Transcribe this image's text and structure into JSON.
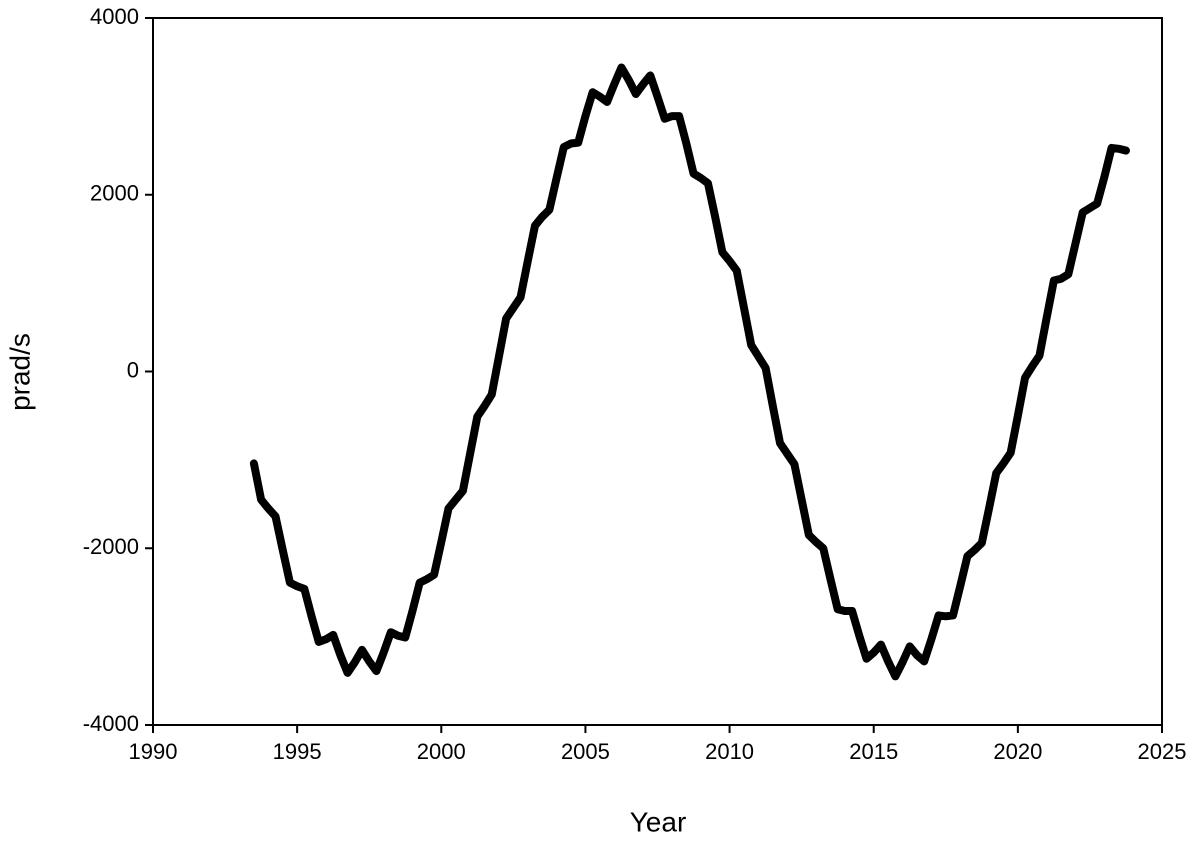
{
  "chart_data": {
    "type": "line",
    "x_label": "Year",
    "y_label": "prad/s",
    "xlim": [
      1990,
      2025
    ],
    "xticks": [
      1990,
      1995,
      2000,
      2005,
      2010,
      2015,
      2020,
      2025
    ],
    "ylim": [
      -4000,
      4000
    ],
    "yticks": [
      -4000,
      -2000,
      0,
      2000,
      4000
    ],
    "series": [
      {
        "color": "#000000",
        "x": [
          1993.5,
          1993.75,
          1994,
          1994.25,
          1994.5,
          1994.75,
          1995,
          1995.25,
          1995.5,
          1995.75,
          1996,
          1996.25,
          1996.5,
          1996.75,
          1997,
          1997.25,
          1997.5,
          1997.75,
          1998,
          1998.25,
          1998.5,
          1998.75,
          1999,
          1999.25,
          1999.5,
          1999.75,
          2000,
          2000.25,
          2000.5,
          2000.75,
          2001,
          2001.25,
          2001.5,
          2001.75,
          2002,
          2002.25,
          2002.5,
          2002.75,
          2003,
          2003.25,
          2003.5,
          2003.75,
          2004,
          2004.25,
          2004.5,
          2004.75,
          2005,
          2005.25,
          2005.5,
          2005.75,
          2006,
          2006.25,
          2006.5,
          2006.75,
          2007,
          2007.25,
          2007.5,
          2007.75,
          2008,
          2008.25,
          2008.5,
          2008.75,
          2009,
          2009.25,
          2009.5,
          2009.75,
          2010,
          2010.25,
          2010.5,
          2010.75,
          2011,
          2011.25,
          2011.5,
          2011.75,
          2012,
          2012.25,
          2012.5,
          2012.75,
          2013,
          2013.25,
          2013.5,
          2013.75,
          2014,
          2014.25,
          2014.5,
          2014.75,
          2015,
          2015.25,
          2015.5,
          2015.75,
          2016,
          2016.25,
          2016.5,
          2016.75,
          2017,
          2017.25,
          2017.5,
          2017.75,
          2018,
          2018.25,
          2018.5,
          2018.75,
          2019,
          2019.25,
          2019.5,
          2019.75,
          2020,
          2020.25,
          2020.5,
          2020.75,
          2021,
          2021.25,
          2021.5,
          2021.75,
          2022,
          2022.25,
          2022.5,
          2022.75,
          2023,
          2023.25,
          2023.5,
          2023.75
        ],
        "values": [
          -1040,
          -1450,
          -1550,
          -1640,
          -2020,
          -2390,
          -2430,
          -2460,
          -2770,
          -3060,
          -3030,
          -2980,
          -3210,
          -3410,
          -3290,
          -3150,
          -3280,
          -3390,
          -3180,
          -2950,
          -2990,
          -3010,
          -2710,
          -2390,
          -2350,
          -2300,
          -1930,
          -1550,
          -1450,
          -1350,
          -930,
          -510,
          -390,
          -260,
          170,
          600,
          720,
          840,
          1250,
          1650,
          1750,
          1830,
          2190,
          2540,
          2580,
          2590,
          2890,
          3160,
          3110,
          3050,
          3250,
          3440,
          3300,
          3140,
          3250,
          3350,
          3110,
          2860,
          2890,
          2890,
          2580,
          2240,
          2190,
          2130,
          1750,
          1350,
          1250,
          1140,
          720,
          300,
          170,
          40,
          -390,
          -810,
          -930,
          -1050,
          -1450,
          -1850,
          -1930,
          -2000,
          -2350,
          -2690,
          -2710,
          -2710,
          -2990,
          -3250,
          -3180,
          -3090,
          -3280,
          -3450,
          -3290,
          -3110,
          -3210,
          -3280,
          -3030,
          -2760,
          -2770,
          -2760,
          -2430,
          -2090,
          -2020,
          -1940,
          -1550,
          -1150,
          -1040,
          -920,
          -500,
          -70,
          60,
          180,
          610,
          1030,
          1050,
          1100,
          1450,
          1800,
          1850,
          1900,
          2200,
          2530,
          2520,
          2500
        ]
      }
    ]
  }
}
